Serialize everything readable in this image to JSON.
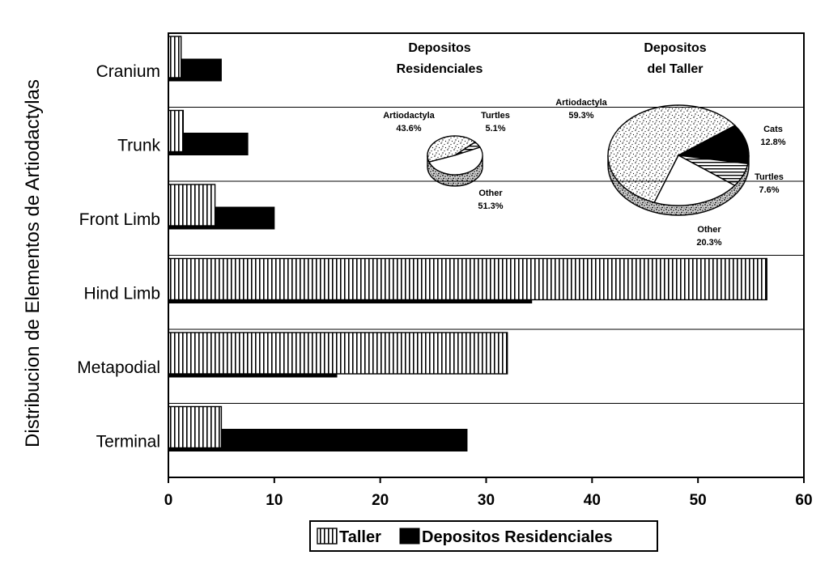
{
  "chart_data": [
    {
      "type": "bar",
      "orientation": "horizontal",
      "ylabel": "Distribucion de Elementos de Artiodactylas",
      "categories": [
        "Cranium",
        "Trunk",
        "Front Limb",
        "Hind Limb",
        "Metapodial",
        "Terminal"
      ],
      "xlim": [
        0,
        60
      ],
      "xticks": [
        "0",
        "10",
        "20",
        "30",
        "40",
        "50",
        "60"
      ],
      "grid": false,
      "legend_position": "bottom-center",
      "series": [
        {
          "name": "Taller",
          "pattern": "vertical-stripes",
          "values": [
            1.2,
            1.4,
            4.4,
            56.5,
            32.0,
            5.0
          ]
        },
        {
          "name": "Depositos Residenciales",
          "color": "#000000",
          "values": [
            5.0,
            7.5,
            10.0,
            34.3,
            15.9,
            28.2
          ]
        }
      ]
    },
    {
      "type": "pie",
      "title_lines": [
        "Depositos",
        "Residenciales"
      ],
      "slices": [
        {
          "label": "Artiodactyla",
          "value": 43.6,
          "value_label": "43.6%"
        },
        {
          "label": "Turtles",
          "value": 5.1,
          "value_label": "5.1%"
        },
        {
          "label": "Other",
          "value": 51.3,
          "value_label": "51.3%"
        }
      ]
    },
    {
      "type": "pie",
      "title_lines": [
        "Depositos",
        "del Taller"
      ],
      "slices": [
        {
          "label": "Artiodactyla",
          "value": 59.3,
          "value_label": "59.3%"
        },
        {
          "label": "Cats",
          "value": 12.8,
          "value_label": "12.8%"
        },
        {
          "label": "Turtles",
          "value": 7.6,
          "value_label": "7.6%"
        },
        {
          "label": "Other",
          "value": 20.3,
          "value_label": "20.3%"
        }
      ]
    }
  ]
}
